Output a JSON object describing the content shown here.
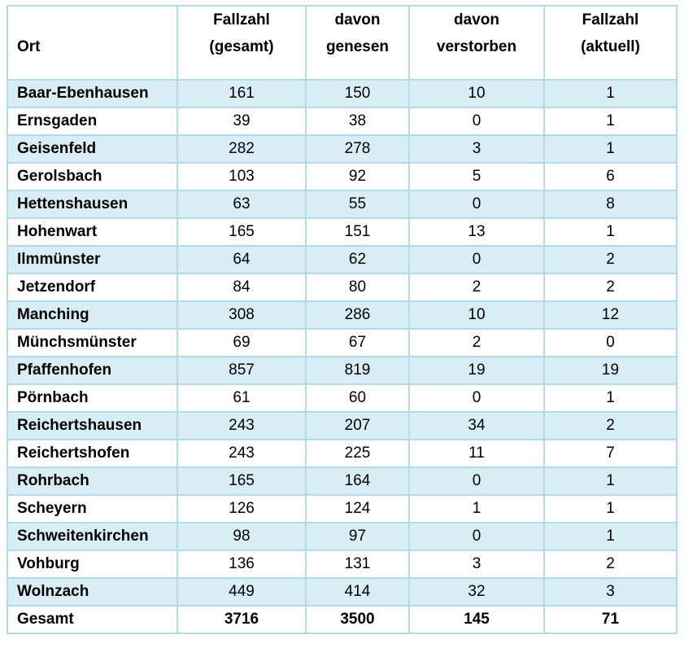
{
  "table": {
    "header": {
      "ort": "Ort",
      "fallzahl_gesamt": [
        "Fallzahl",
        "(gesamt)"
      ],
      "davon_genesen": [
        "davon",
        "genesen"
      ],
      "davon_verstorben": [
        "davon",
        "verstorben"
      ],
      "fallzahl_aktuell": [
        "Fallzahl",
        "(aktuell)"
      ]
    },
    "rows": [
      {
        "ort": "Baar-Ebenhausen",
        "gesamt": "161",
        "genesen": "150",
        "verstorben": "10",
        "aktuell": "1"
      },
      {
        "ort": "Ernsgaden",
        "gesamt": "39",
        "genesen": "38",
        "verstorben": "0",
        "aktuell": "1"
      },
      {
        "ort": "Geisenfeld",
        "gesamt": "282",
        "genesen": "278",
        "verstorben": "3",
        "aktuell": "1"
      },
      {
        "ort": "Gerolsbach",
        "gesamt": "103",
        "genesen": "92",
        "verstorben": "5",
        "aktuell": "6"
      },
      {
        "ort": "Hettenshausen",
        "gesamt": "63",
        "genesen": "55",
        "verstorben": "0",
        "aktuell": "8"
      },
      {
        "ort": "Hohenwart",
        "gesamt": "165",
        "genesen": "151",
        "verstorben": "13",
        "aktuell": "1"
      },
      {
        "ort": "Ilmmünster",
        "gesamt": "64",
        "genesen": "62",
        "verstorben": "0",
        "aktuell": "2"
      },
      {
        "ort": "Jetzendorf",
        "gesamt": "84",
        "genesen": "80",
        "verstorben": "2",
        "aktuell": "2"
      },
      {
        "ort": "Manching",
        "gesamt": "308",
        "genesen": "286",
        "verstorben": "10",
        "aktuell": "12"
      },
      {
        "ort": "Münchsmünster",
        "gesamt": "69",
        "genesen": "67",
        "verstorben": "2",
        "aktuell": "0"
      },
      {
        "ort": "Pfaffenhofen",
        "gesamt": "857",
        "genesen": "819",
        "verstorben": "19",
        "aktuell": "19"
      },
      {
        "ort": "Pörnbach",
        "gesamt": "61",
        "genesen": "60",
        "verstorben": "0",
        "aktuell": "1"
      },
      {
        "ort": "Reichertshausen",
        "gesamt": "243",
        "genesen": "207",
        "verstorben": "34",
        "aktuell": "2"
      },
      {
        "ort": "Reichertshofen",
        "gesamt": "243",
        "genesen": "225",
        "verstorben": "11",
        "aktuell": "7"
      },
      {
        "ort": "Rohrbach",
        "gesamt": "165",
        "genesen": "164",
        "verstorben": "0",
        "aktuell": "1"
      },
      {
        "ort": "Scheyern",
        "gesamt": "126",
        "genesen": "124",
        "verstorben": "1",
        "aktuell": "1"
      },
      {
        "ort": "Schweitenkirchen",
        "gesamt": "98",
        "genesen": "97",
        "verstorben": "0",
        "aktuell": "1"
      },
      {
        "ort": "Vohburg",
        "gesamt": "136",
        "genesen": "131",
        "verstorben": "3",
        "aktuell": "2"
      },
      {
        "ort": "Wolnzach",
        "gesamt": "449",
        "genesen": "414",
        "verstorben": "32",
        "aktuell": "3"
      }
    ],
    "total": {
      "ort": "Gesamt",
      "gesamt": "3716",
      "genesen": "3500",
      "verstorben": "145",
      "aktuell": "71"
    },
    "colors": {
      "stripe": "#d9edf4",
      "border": "#b2dbe9",
      "text": "#000000",
      "background": "#ffffff"
    }
  }
}
